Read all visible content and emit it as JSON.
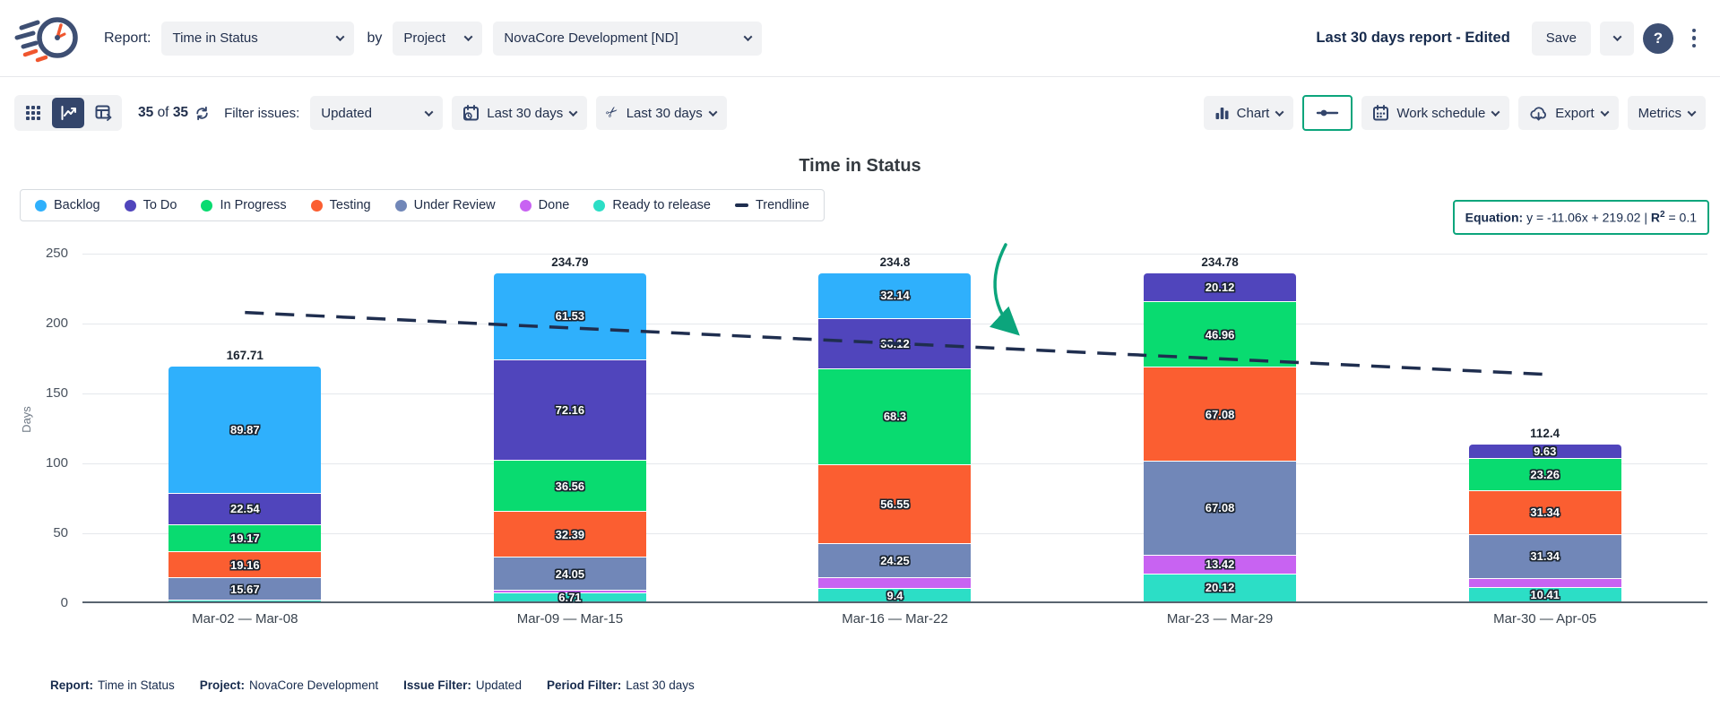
{
  "header": {
    "report_label": "Report:",
    "report_value": "Time in Status",
    "by_label": "by",
    "group_value": "Project",
    "project_value": "NovaCore Development [ND]",
    "doc_title": "Last 30 days report - Edited",
    "save_label": "Save"
  },
  "icons": {
    "help": "?",
    "scissors": "✂"
  },
  "toolbar": {
    "count_value": "35",
    "count_of": "of",
    "count_total": "35",
    "filter_label": "Filter issues:",
    "issue_filter_value": "Updated",
    "period_filter_value": "Last 30 days",
    "trim_filter_value": "Last 30 days",
    "chart_label": "Chart",
    "work_schedule_label": "Work schedule",
    "export_label": "Export",
    "metrics_label": "Metrics"
  },
  "equation_box": {
    "label": "Equation:",
    "body": " y = -11.06x + 219.02 | ",
    "r": "R",
    "sup": "2",
    "rest": " = 0.1"
  },
  "chart_data": {
    "type": "bar",
    "stacked": true,
    "title": "Time in Status",
    "ylabel": "Days",
    "ylim": [
      0,
      250
    ],
    "yticks": [
      0,
      50,
      100,
      150,
      200,
      250
    ],
    "grid": true,
    "legend_position": "top-left",
    "categories": [
      "Mar-02 — Mar-08",
      "Mar-09 — Mar-15",
      "Mar-16 — Mar-22",
      "Mar-23 — Mar-29",
      "Mar-30 — Apr-05"
    ],
    "totals": [
      "167.71",
      "234.79",
      "234.8",
      "234.78",
      "112.4"
    ],
    "series": [
      {
        "name": "Backlog",
        "color": "#2FB0FC",
        "values": [
          89.87,
          61.53,
          32.14,
          0,
          0
        ],
        "labels": [
          "89.87",
          "61.53",
          "32.14",
          "",
          ""
        ]
      },
      {
        "name": "To Do",
        "color": "#5045BC",
        "values": [
          22.54,
          72.16,
          36.12,
          20.12,
          9.63
        ],
        "labels": [
          "22.54",
          "72.16",
          "36.12",
          "20.12",
          "9.63"
        ]
      },
      {
        "name": "In Progress",
        "color": "#09DB70",
        "values": [
          19.17,
          36.56,
          68.3,
          46.96,
          23.26
        ],
        "labels": [
          "19.17",
          "36.56",
          "68.3",
          "46.96",
          "23.26"
        ]
      },
      {
        "name": "Testing",
        "color": "#FB5E31",
        "values": [
          19.16,
          32.39,
          56.55,
          67.08,
          31.34
        ],
        "labels": [
          "19.16",
          "32.39",
          "56.55",
          "67.08",
          "31.34"
        ]
      },
      {
        "name": "Under Review",
        "color": "#7187B8",
        "values": [
          15.67,
          24.05,
          24.25,
          67.08,
          31.34
        ],
        "labels": [
          "15.67",
          "24.05",
          "24.25",
          "67.08",
          "31.34"
        ]
      },
      {
        "name": "Done",
        "color": "#C863F2",
        "values": [
          0,
          1.39,
          8.04,
          13.42,
          6.42
        ],
        "labels": [
          "",
          "",
          "",
          "13.42",
          ""
        ]
      },
      {
        "name": "Ready to release",
        "color": "#2CDEC6",
        "values": [
          1.3,
          6.71,
          9.4,
          20.12,
          10.41
        ],
        "labels": [
          "",
          "6.71",
          "9.4",
          "20.12",
          "10.41"
        ]
      }
    ],
    "trendline": {
      "label": "Trendline",
      "color": "#1F2E4F",
      "equation": "y = -11.06x + 219.02",
      "r2": "0.1",
      "points": [
        207.96,
        196.9,
        185.84,
        174.78,
        163.72
      ]
    }
  },
  "colors": {
    "accent_teal": "#0CA57C",
    "navy": "#33456b",
    "button_bg": "#f1f2f4"
  },
  "footer": {
    "items": [
      {
        "label": "Report:",
        "value": "Time in Status"
      },
      {
        "label": "Project:",
        "value": "NovaCore Development"
      },
      {
        "label": "Issue Filter:",
        "value": "Updated"
      },
      {
        "label": "Period Filter:",
        "value": "Last 30 days"
      }
    ]
  }
}
